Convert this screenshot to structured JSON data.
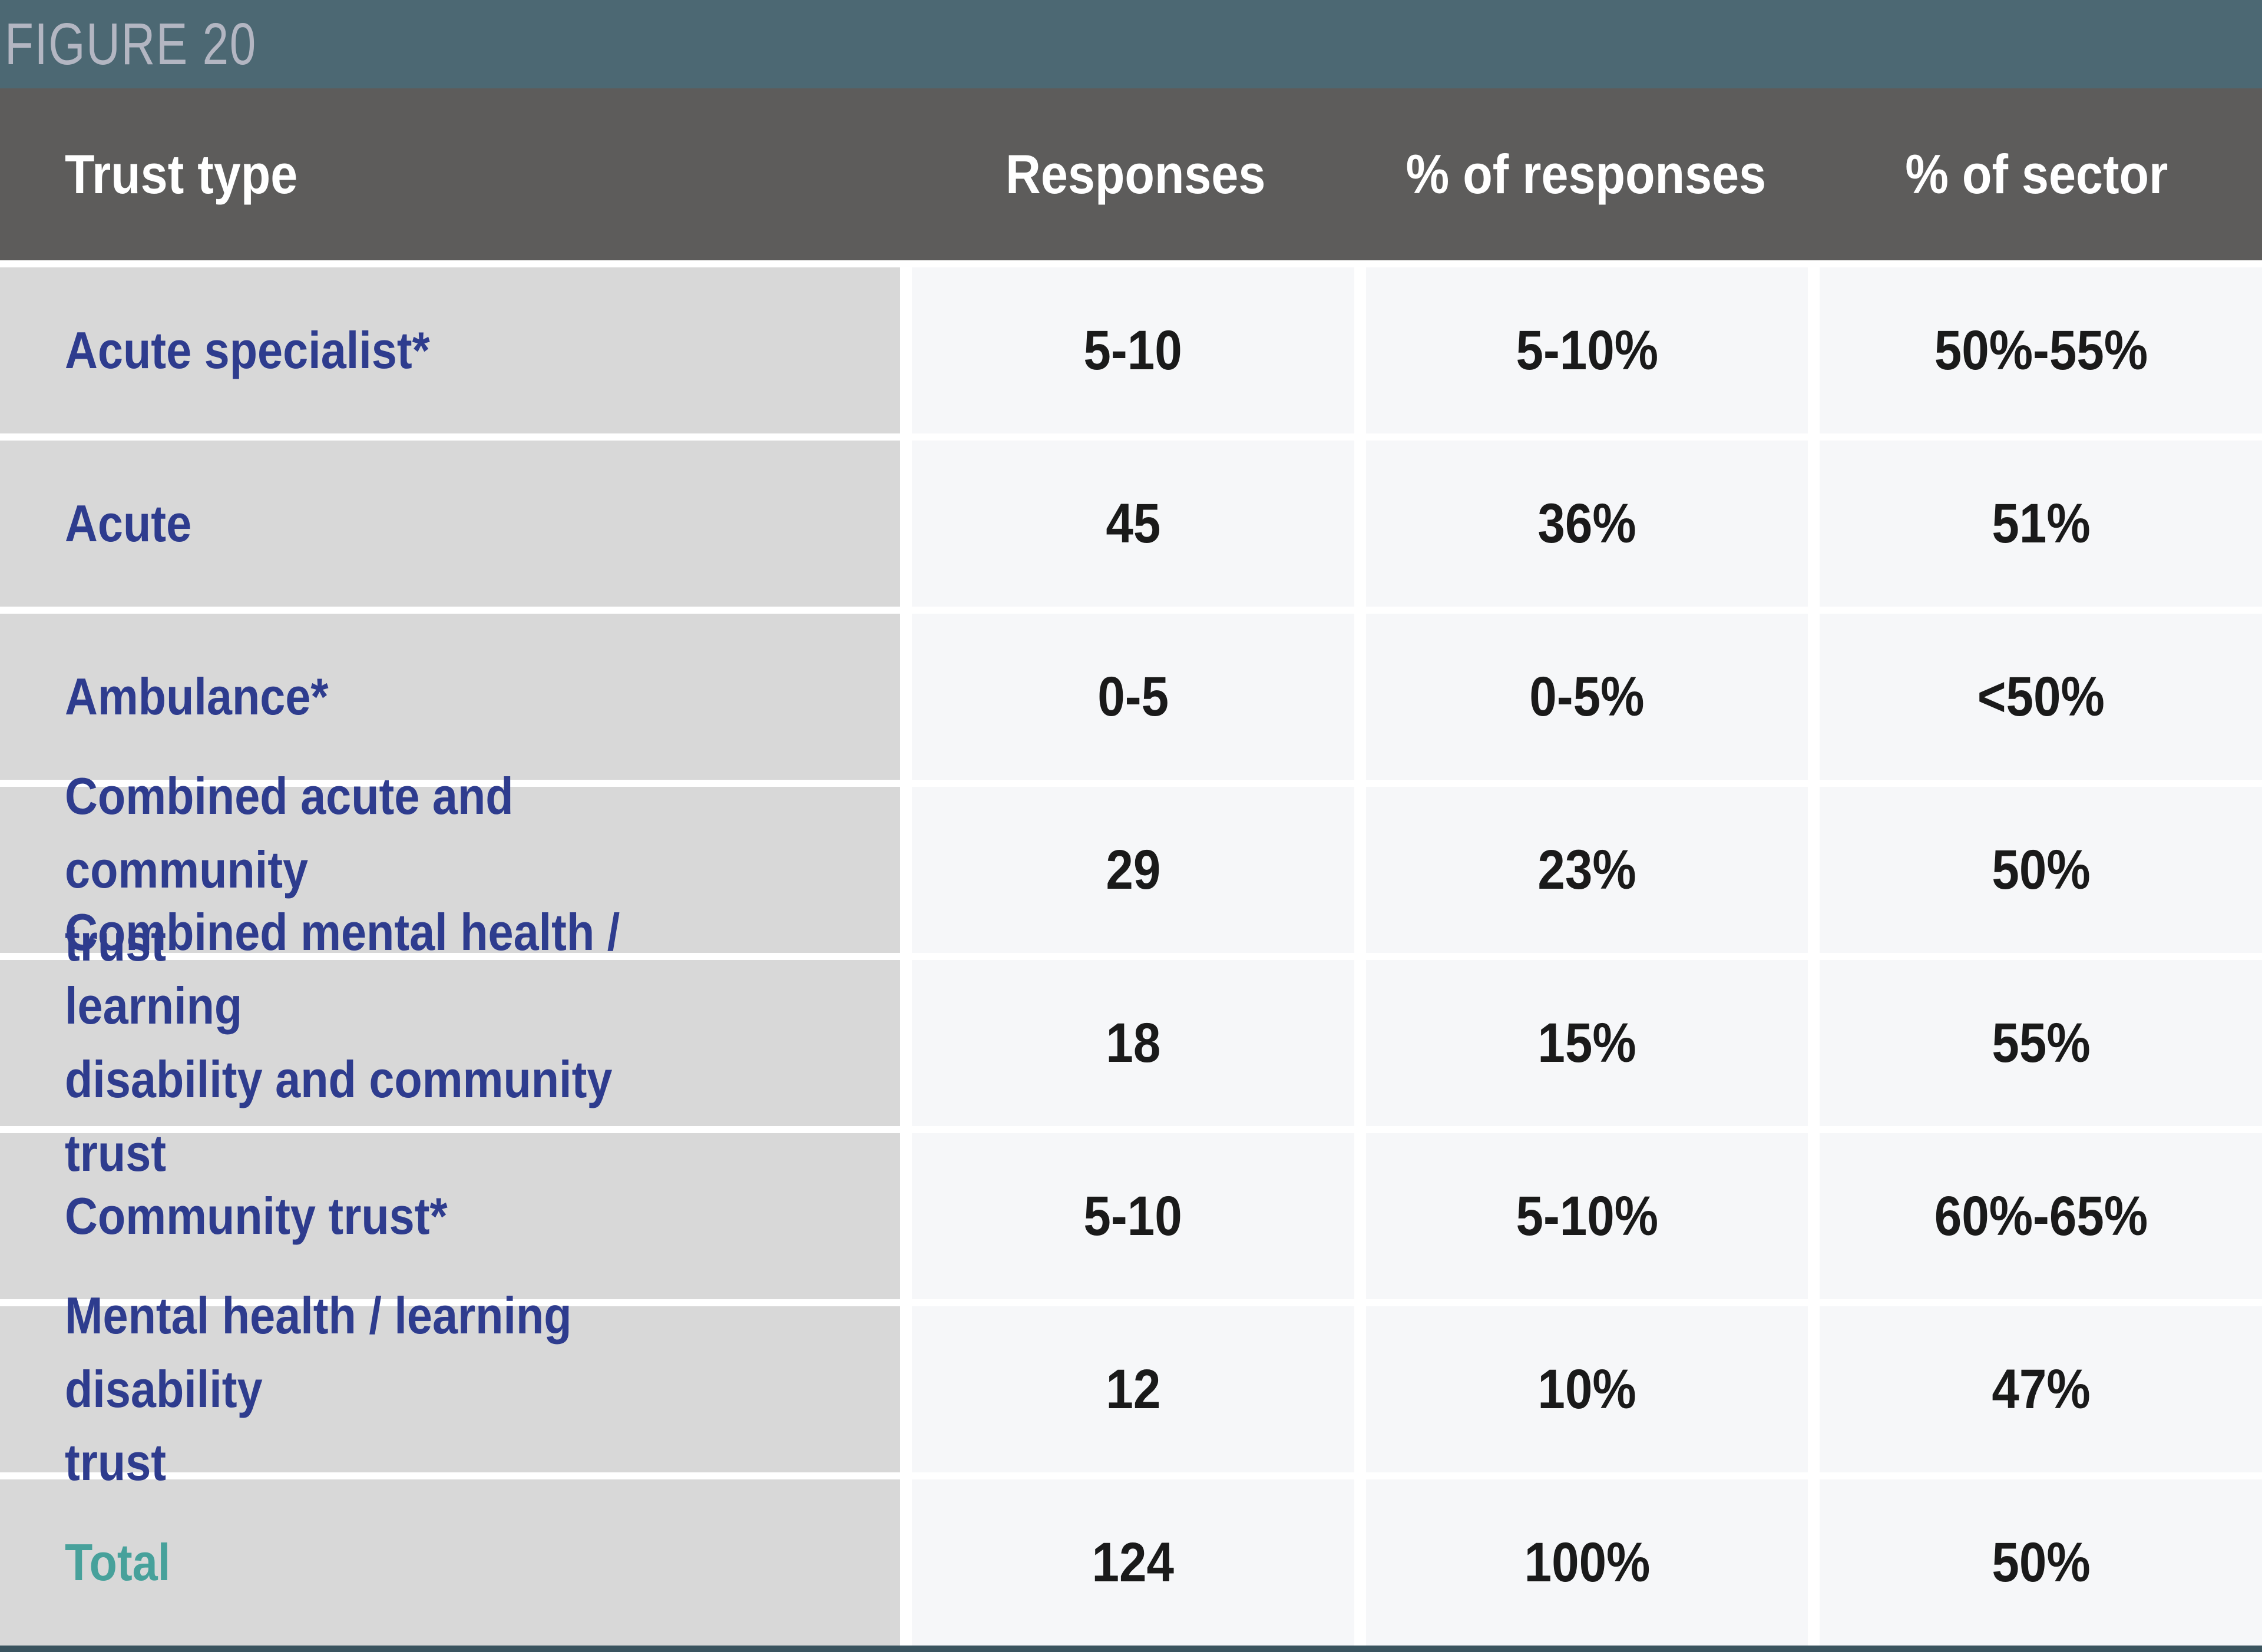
{
  "figure_label": "FIGURE 20",
  "colors": {
    "banner_bg": "#4c6873",
    "banner_text": "#b3b6c2",
    "header_bg": "#5d5c5b",
    "header_text": "#ffffff",
    "label_cell_bg": "#d8d8d8",
    "data_cell_bg": "#f6f7f9",
    "trust_type_text": "#2e3c8e",
    "total_text": "#47a19b",
    "data_text": "#1a1a1a",
    "bottom_rule": "#3a545f"
  },
  "chart_data": {
    "type": "table",
    "title": "FIGURE 20",
    "columns": [
      "Trust type",
      "Responses",
      "% of responses",
      "% of sector"
    ],
    "rows": [
      [
        "Acute specialist*",
        "5-10",
        "5-10%",
        "50%-55%"
      ],
      [
        "Acute",
        "45",
        "36%",
        "51%"
      ],
      [
        "Ambulance*",
        "0-5",
        "0-5%",
        "<50%"
      ],
      [
        "Combined acute and community\ntrust",
        "29",
        "23%",
        "50%"
      ],
      [
        "Combined mental health / learning\ndisability and community trust",
        "18",
        "15%",
        "55%"
      ],
      [
        "Community trust*",
        "5-10",
        "5-10%",
        "60%-65%"
      ],
      [
        "Mental health / learning disability\ntrust",
        "12",
        "10%",
        "47%"
      ],
      [
        "Total",
        "124",
        "100%",
        "50%"
      ]
    ]
  }
}
